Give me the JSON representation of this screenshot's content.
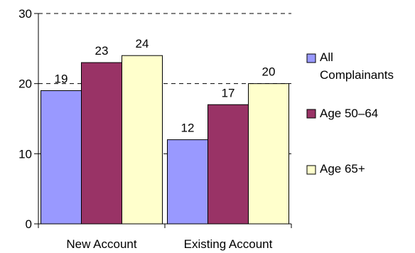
{
  "chart_data": {
    "type": "bar",
    "categories": [
      "New Account",
      "Existing Account"
    ],
    "series": [
      {
        "name": "All Complainants",
        "name_lines": [
          "All",
          "Complainants"
        ],
        "values": [
          19,
          12
        ],
        "color": "#9999ff"
      },
      {
        "name": "Age 50–64",
        "name_lines": [
          "Age 50–64"
        ],
        "values": [
          23,
          17
        ],
        "color": "#993366"
      },
      {
        "name": "Age 65+",
        "name_lines": [
          "Age 65+"
        ],
        "values": [
          24,
          20
        ],
        "color": "#ffffcc"
      }
    ],
    "yticks": [
      "0",
      "10",
      "20",
      "30"
    ],
    "ylim": [
      0,
      30
    ],
    "grid": "dashed horizontal",
    "legend_position": "right",
    "title": "",
    "xlabel": "",
    "ylabel": ""
  }
}
